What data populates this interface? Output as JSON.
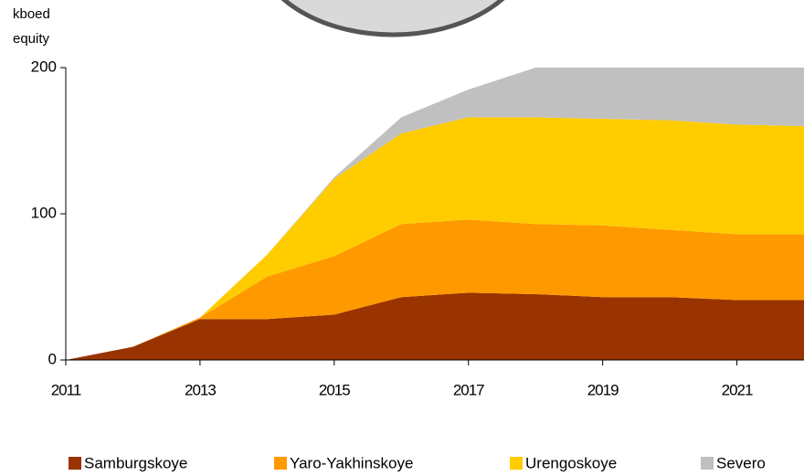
{
  "chart_data": {
    "type": "stacked_area",
    "y_label": [
      "kboed",
      "equity"
    ],
    "x": [
      2011,
      2012,
      2013,
      2014,
      2015,
      2016,
      2017,
      2018,
      2019,
      2020,
      2021,
      2022
    ],
    "series": [
      {
        "name": "Samburgskoye",
        "color": "#993300",
        "values": [
          0,
          9,
          28,
          28,
          31,
          43,
          46,
          45,
          43,
          43,
          41,
          41
        ]
      },
      {
        "name": "Yaro-Yakhinskoye",
        "color": "#ff9900",
        "values": [
          0,
          0,
          1,
          29,
          40,
          50,
          50,
          48,
          49,
          46,
          45,
          45
        ]
      },
      {
        "name": "Urengoskoye",
        "color": "#ffcc00",
        "values": [
          0,
          0,
          0,
          15,
          53,
          62,
          70,
          73,
          73,
          75,
          75,
          74
        ]
      },
      {
        "name": "Severo",
        "color": "#c0c0c0",
        "values": [
          0,
          0,
          0,
          0,
          1,
          11,
          19,
          34,
          35,
          36,
          39,
          40
        ]
      }
    ],
    "xlim": [
      2011,
      2022
    ],
    "xticks": [
      2011,
      2013,
      2015,
      2017,
      2019,
      2021
    ],
    "ylim": [
      0,
      200
    ],
    "yticks": [
      0,
      100,
      200
    ],
    "grid": false,
    "legend": "bottom"
  }
}
